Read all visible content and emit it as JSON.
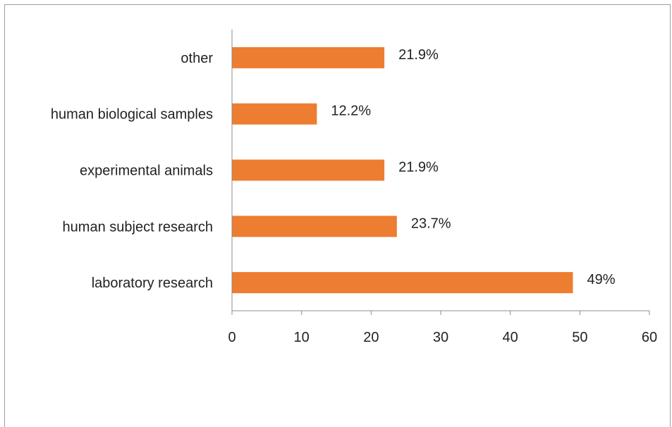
{
  "chart_data": {
    "type": "bar",
    "orientation": "horizontal",
    "categories": [
      "laboratory research",
      "human subject research",
      "experimental animals",
      "human biological samples",
      "other"
    ],
    "values": [
      49,
      23.7,
      21.9,
      12.2,
      21.9
    ],
    "data_labels": [
      "49%",
      "23.7%",
      "21.9%",
      "12.2%",
      "21.9%"
    ],
    "xlim": [
      0,
      60
    ],
    "x_ticks": [
      0,
      10,
      20,
      30,
      40,
      50,
      60
    ],
    "x_tick_labels": [
      "0",
      "10",
      "20",
      "30",
      "40",
      "50",
      "60"
    ],
    "title": "",
    "xlabel": "",
    "ylabel": "",
    "grid": false,
    "bar_color": "#ED7D31"
  }
}
